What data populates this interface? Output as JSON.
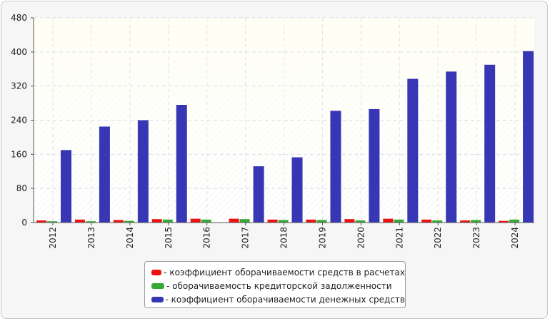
{
  "chart_data": {
    "type": "bar",
    "categories": [
      "2012",
      "2013",
      "2014",
      "2015",
      "2016",
      "2017",
      "2018",
      "2019",
      "2020",
      "2021",
      "2022",
      "2023",
      "2024"
    ],
    "series": [
      {
        "name": "- коэффициент оборачиваемости средств в расчетах",
        "color": "#ee1111",
        "values": [
          5,
          7,
          6,
          8,
          9,
          9,
          7,
          7,
          8,
          9,
          7,
          5,
          4
        ]
      },
      {
        "name": "- оборачиваемость кредиторской задолженности",
        "color": "#33aa33",
        "values": [
          3,
          3,
          4,
          7,
          7,
          8,
          6,
          6,
          5,
          7,
          5,
          6,
          7
        ]
      },
      {
        "name": "- коэффициент оборачиваемости денежных средств",
        "color": "#3737b6",
        "values": [
          170,
          225,
          240,
          276,
          0,
          132,
          153,
          262,
          266,
          337,
          354,
          370,
          402
        ]
      }
    ],
    "yticks": [
      0,
      80,
      160,
      240,
      320,
      400,
      480
    ],
    "ylim": [
      0,
      480
    ],
    "grid": true,
    "legend_position": "bottom-center"
  }
}
